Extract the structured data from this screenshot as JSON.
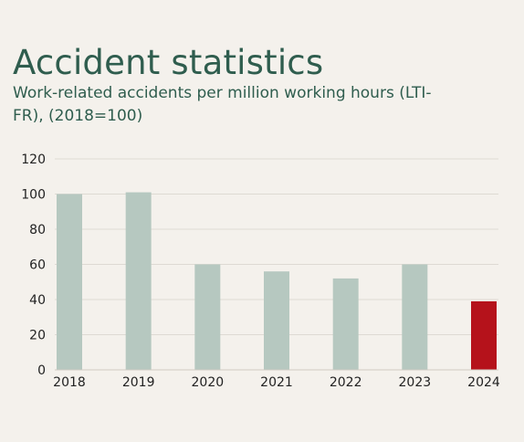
{
  "header": {
    "title": "Accident statistics",
    "subtitle": "Work-related accidents per million working hours (LTI-FR), (2018=100)"
  },
  "colors": {
    "background": "#f4f1ec",
    "bar": "#b6c8c0",
    "highlight_bar": "#b5121b",
    "grid": "#dedad3",
    "text": "#2f5d4e"
  },
  "chart_data": {
    "type": "bar",
    "title": "Accident statistics",
    "subtitle": "Work-related accidents per million working hours (LTI-FR), (2018=100)",
    "categories": [
      "2018",
      "2019",
      "2020",
      "2021",
      "2022",
      "2023",
      "2024"
    ],
    "values": [
      100,
      101,
      60,
      56,
      52,
      60,
      39
    ],
    "highlight": [
      "2024"
    ],
    "xlabel": "",
    "ylabel": "",
    "ylim": [
      0,
      120
    ],
    "yticks": [
      0,
      20,
      40,
      60,
      80,
      100,
      120
    ],
    "grid": true,
    "legend": "none"
  }
}
